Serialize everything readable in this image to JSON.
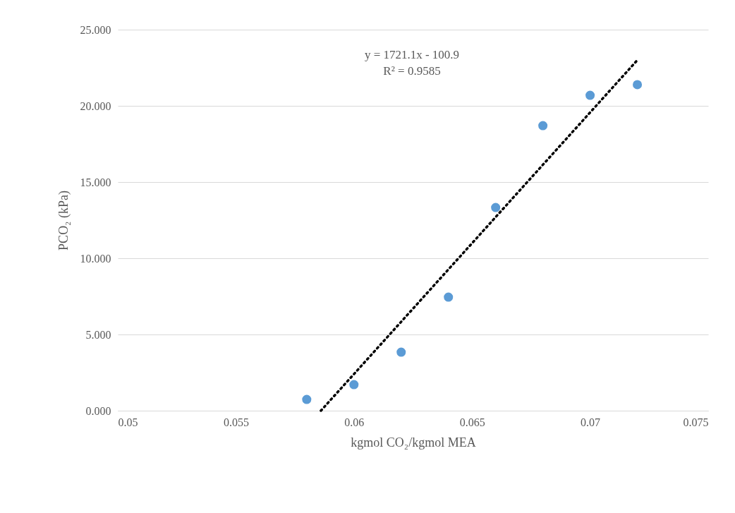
{
  "chart_data": {
    "type": "scatter",
    "xlabel": "kgmol CO₂/kgmol MEA",
    "ylabel": "PCO₂ (kPa)",
    "annotations": [
      "y = 1721.1x - 100.9",
      "R² = 0.9585"
    ],
    "series": [
      {
        "color": "#5b9bd5",
        "marker": "circle",
        "x": [
          0.058,
          0.06,
          0.062,
          0.064,
          0.066,
          0.068,
          0.07,
          0.072
        ],
        "values": [
          0.74,
          1.71,
          3.84,
          7.45,
          13.33,
          18.7,
          20.69,
          21.39
        ]
      },
      {
        "type": "line",
        "color": "#000000",
        "line_style": "dotted",
        "x": [
          0.0586,
          0.072
        ],
        "values": [
          0,
          23.0
        ]
      }
    ],
    "xlim": [
      0.05,
      0.075
    ],
    "xticks": [
      0.05,
      0.055,
      0.06,
      0.065,
      0.07,
      0.075
    ],
    "ylim": [
      0,
      25
    ],
    "yticks": [
      {
        "value": 0,
        "label": "0.000"
      },
      {
        "value": 5,
        "label": "5.000"
      },
      {
        "value": 10,
        "label": "10.000"
      },
      {
        "value": 15,
        "label": "15.000"
      },
      {
        "value": 20,
        "label": "20.000"
      },
      {
        "value": 25,
        "label": "25.000"
      }
    ],
    "grid": "y"
  }
}
